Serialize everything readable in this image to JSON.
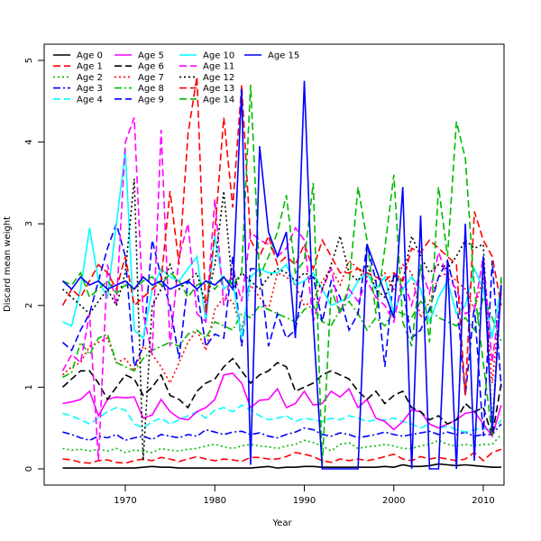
{
  "chart_data": {
    "type": "line",
    "title": "",
    "xlabel": "Year",
    "ylabel": "Discard mean weight",
    "xlim": [
      1963,
      2012
    ],
    "ylim": [
      0,
      5
    ],
    "xticks": [
      1970,
      1980,
      1990,
      2000,
      2010
    ],
    "yticks": [
      0,
      1,
      2,
      3,
      4,
      5
    ],
    "grid": false,
    "legend_position": "top-left",
    "x": [
      1963,
      1964,
      1965,
      1966,
      1967,
      1968,
      1969,
      1970,
      1971,
      1972,
      1973,
      1974,
      1975,
      1976,
      1977,
      1978,
      1979,
      1980,
      1981,
      1982,
      1983,
      1984,
      1985,
      1986,
      1987,
      1988,
      1989,
      1990,
      1991,
      1992,
      1993,
      1994,
      1995,
      1996,
      1997,
      1998,
      1999,
      2000,
      2001,
      2002,
      2003,
      2004,
      2005,
      2006,
      2007,
      2008,
      2009,
      2010,
      2011,
      2012
    ],
    "series": [
      {
        "name": "Age 0",
        "color": "#000000",
        "dash": "solid",
        "values": [
          0.01,
          0.01,
          0.01,
          0.01,
          0.01,
          0.01,
          0.01,
          0.01,
          0.01,
          0.02,
          0.03,
          0.02,
          0.02,
          0.01,
          0.01,
          0.01,
          0.01,
          0.01,
          0.01,
          0.01,
          0.01,
          0.01,
          0.02,
          0.03,
          0.01,
          0.02,
          0.02,
          0.03,
          0.03,
          0.02,
          0.02,
          0.02,
          0.02,
          0.02,
          0.02,
          0.02,
          0.03,
          0.02,
          0.05,
          0.03,
          0.03,
          0.04,
          0.06,
          0.05,
          0.04,
          0.05,
          0.04,
          0.03,
          0.02,
          0.02
        ]
      },
      {
        "name": "Age 1",
        "color": "#ff0000",
        "dash": "dashed",
        "values": [
          0.12,
          0.11,
          0.08,
          0.07,
          0.1,
          0.11,
          0.08,
          0.07,
          0.1,
          0.12,
          0.1,
          0.14,
          0.12,
          0.09,
          0.12,
          0.15,
          0.12,
          0.1,
          0.12,
          0.11,
          0.09,
          0.14,
          0.14,
          0.12,
          0.12,
          0.15,
          0.2,
          0.18,
          0.15,
          0.1,
          0.08,
          0.12,
          0.1,
          0.12,
          0.1,
          0.12,
          0.15,
          0.18,
          0.12,
          0.1,
          0.15,
          0.12,
          0.14,
          0.12,
          0.1,
          0.12,
          0.2,
          0.1,
          0.2,
          0.24
        ]
      },
      {
        "name": "Age 2",
        "color": "#00bb00",
        "dash": "dotted",
        "values": [
          0.25,
          0.23,
          0.24,
          0.22,
          0.24,
          0.22,
          0.25,
          0.2,
          0.23,
          0.22,
          0.2,
          0.25,
          0.23,
          0.22,
          0.24,
          0.25,
          0.28,
          0.3,
          0.27,
          0.25,
          0.28,
          0.3,
          0.28,
          0.27,
          0.25,
          0.28,
          0.3,
          0.35,
          0.32,
          0.28,
          0.22,
          0.3,
          0.32,
          0.25,
          0.27,
          0.28,
          0.3,
          0.28,
          0.25,
          0.25,
          0.28,
          0.3,
          0.35,
          0.3,
          0.28,
          0.3,
          0.28,
          0.3,
          0.3,
          0.42
        ]
      },
      {
        "name": "Age 3",
        "color": "#0000ff",
        "dash": "dashdot",
        "values": [
          0.45,
          0.42,
          0.38,
          0.35,
          0.4,
          0.38,
          0.42,
          0.35,
          0.38,
          0.4,
          0.36,
          0.42,
          0.4,
          0.38,
          0.42,
          0.4,
          0.48,
          0.45,
          0.42,
          0.45,
          0.46,
          0.42,
          0.44,
          0.4,
          0.38,
          0.42,
          0.45,
          0.5,
          0.48,
          0.42,
          0.4,
          0.44,
          0.42,
          0.38,
          0.4,
          0.42,
          0.45,
          0.42,
          0.4,
          0.42,
          0.44,
          0.46,
          0.42,
          0.45,
          0.42,
          0.45,
          0.4,
          0.42,
          0.42,
          0.55
        ]
      },
      {
        "name": "Age 4",
        "color": "#00ffff",
        "dash": "dashed",
        "values": [
          0.68,
          0.65,
          0.6,
          0.55,
          0.62,
          0.7,
          0.75,
          0.72,
          0.55,
          0.5,
          0.58,
          0.62,
          0.55,
          0.6,
          0.65,
          0.7,
          0.62,
          0.72,
          0.75,
          0.7,
          0.78,
          0.72,
          0.65,
          0.6,
          0.62,
          0.65,
          0.58,
          0.62,
          0.6,
          0.58,
          0.62,
          0.6,
          0.65,
          0.62,
          0.58,
          0.6,
          0.6,
          0.62,
          0.58,
          0.55,
          0.5,
          0.55,
          0.5,
          0.52,
          0.48,
          0.45,
          0.48,
          0.5,
          0.45,
          0.6
        ]
      },
      {
        "name": "Age 5",
        "color": "#ff00ff",
        "dash": "solid",
        "values": [
          0.8,
          0.82,
          0.85,
          0.95,
          0.65,
          0.85,
          0.88,
          0.87,
          0.88,
          0.62,
          0.66,
          0.85,
          0.7,
          0.62,
          0.6,
          0.7,
          0.75,
          0.85,
          1.15,
          1.17,
          1.05,
          0.75,
          0.84,
          0.85,
          0.98,
          0.75,
          0.8,
          0.95,
          0.78,
          0.8,
          0.95,
          0.88,
          0.98,
          0.75,
          0.85,
          0.62,
          0.58,
          0.48,
          0.58,
          0.72,
          0.7,
          0.55,
          0.5,
          0.55,
          0.6,
          0.68,
          0.7,
          0.55,
          0.4,
          0.78
        ]
      },
      {
        "name": "Age 6",
        "color": "#000000",
        "dash": "dashed",
        "values": [
          1.0,
          1.1,
          1.2,
          1.2,
          1.05,
          0.85,
          1.0,
          1.15,
          1.1,
          0.9,
          1.0,
          1.15,
          0.9,
          0.85,
          0.75,
          0.95,
          1.05,
          1.1,
          1.25,
          1.35,
          1.2,
          1.05,
          1.15,
          1.2,
          1.3,
          1.25,
          0.95,
          1.0,
          1.05,
          1.15,
          1.2,
          1.15,
          1.1,
          0.95,
          0.85,
          0.95,
          0.8,
          0.9,
          0.95,
          0.75,
          0.7,
          0.6,
          0.65,
          0.55,
          0.6,
          0.8,
          0.7,
          0.75,
          0.4,
          1.05
        ]
      },
      {
        "name": "Age 7",
        "color": "#ff0000",
        "dash": "dotted",
        "values": [
          1.15,
          1.25,
          1.3,
          1.5,
          1.55,
          1.6,
          1.3,
          1.35,
          1.2,
          1.5,
          1.4,
          1.25,
          1.05,
          1.3,
          1.55,
          1.7,
          1.45,
          1.95,
          2.1,
          2.05,
          1.7,
          2.25,
          2.1,
          1.95,
          2.4,
          2.35,
          2.25,
          2.0,
          2.05,
          2.3,
          2.45,
          2.25,
          2.55,
          2.45,
          2.35,
          2.3,
          2.4,
          2.2,
          2.5,
          2.4,
          1.85,
          2.05,
          2.35,
          2.4,
          2.3,
          2.2,
          1.95,
          2.35,
          1.05,
          2.15
        ]
      },
      {
        "name": "Age 8",
        "color": "#00bb00",
        "dash": "dashdot",
        "values": [
          1.12,
          1.18,
          1.55,
          1.4,
          1.6,
          1.65,
          1.3,
          1.25,
          1.2,
          1.35,
          1.45,
          1.5,
          1.55,
          1.5,
          1.65,
          1.7,
          1.6,
          1.8,
          1.75,
          1.7,
          1.9,
          1.85,
          2.0,
          1.95,
          1.9,
          1.85,
          1.8,
          1.95,
          2.0,
          1.8,
          1.75,
          1.95,
          2.05,
          1.9,
          1.7,
          1.85,
          1.75,
          1.95,
          1.9,
          1.85,
          2.05,
          1.95,
          1.85,
          1.8,
          1.75,
          1.85,
          1.7,
          2.1,
          1.85,
          1.55
        ]
      },
      {
        "name": "Age 9",
        "color": "#0000ff",
        "dash": "dashed",
        "values": [
          1.55,
          1.45,
          1.7,
          1.9,
          2.3,
          2.7,
          3.0,
          2.6,
          1.25,
          1.5,
          2.8,
          2.35,
          2.0,
          1.35,
          2.3,
          2.2,
          1.5,
          1.65,
          1.6,
          2.6,
          1.5,
          2.45,
          2.45,
          1.5,
          1.9,
          1.6,
          1.7,
          2.3,
          2.35,
          1.8,
          2.3,
          2.1,
          1.7,
          1.9,
          2.75,
          2.3,
          1.25,
          2.4,
          2.2,
          1.6,
          1.7,
          1.95,
          2.35,
          2.55,
          2.1,
          0.9,
          2.0,
          0.4,
          2.55,
          1.0
        ]
      },
      {
        "name": "Age 10",
        "color": "#00ffff",
        "dash": "solid",
        "values": [
          1.8,
          1.75,
          2.2,
          2.95,
          2.3,
          2.1,
          3.0,
          3.9,
          1.7,
          1.6,
          2.2,
          2.45,
          2.35,
          2.3,
          2.45,
          2.6,
          1.8,
          2.85,
          2.2,
          2.3,
          1.6,
          2.35,
          2.45,
          2.4,
          2.4,
          2.5,
          2.25,
          2.3,
          2.4,
          2.2,
          2.0,
          2.05,
          2.1,
          2.3,
          2.4,
          2.2,
          2.35,
          1.9,
          2.2,
          2.35,
          2.2,
          1.8,
          2.1,
          2.3,
          1.9,
          2.0,
          2.45,
          2.2,
          1.6,
          2.25
        ]
      },
      {
        "name": "Age 11",
        "color": "#ff00ff",
        "dash": "dashed",
        "values": [
          1.2,
          1.4,
          1.3,
          1.9,
          0.1,
          2.5,
          2.0,
          4.0,
          4.3,
          1.9,
          1.4,
          4.15,
          1.5,
          2.6,
          3.0,
          1.9,
          1.8,
          3.3,
          2.0,
          2.45,
          2.05,
          2.9,
          2.8,
          2.75,
          2.6,
          2.7,
          2.95,
          2.8,
          1.8,
          2.2,
          2.45,
          1.9,
          2.2,
          2.05,
          2.3,
          2.1,
          2.0,
          1.8,
          2.35,
          2.0,
          2.45,
          2.15,
          2.65,
          2.35,
          2.2,
          1.9,
          1.95,
          2.6,
          1.3,
          2.2
        ]
      },
      {
        "name": "Age 12",
        "color": "#000000",
        "dash": "dotted",
        "values": [
          2.2,
          2.1,
          2.0,
          1.9,
          2.05,
          2.2,
          2.0,
          2.4,
          3.55,
          0.1,
          2.0,
          2.2,
          2.5,
          2.2,
          2.3,
          2.4,
          2.0,
          2.5,
          3.4,
          2.2,
          2.4,
          2.3,
          2.2,
          2.35,
          2.45,
          2.4,
          2.3,
          2.4,
          2.35,
          2.2,
          2.5,
          2.85,
          2.4,
          2.3,
          2.5,
          2.2,
          2.1,
          2.35,
          2.3,
          2.85,
          2.6,
          2.4,
          2.5,
          2.45,
          2.6,
          2.8,
          2.7,
          2.75,
          0.5,
          2.3
        ]
      },
      {
        "name": "Age 13",
        "color": "#ff0000",
        "dash": "dashed",
        "values": [
          2.0,
          2.2,
          2.1,
          2.3,
          2.5,
          2.4,
          2.2,
          2.6,
          2.0,
          2.1,
          2.2,
          2.3,
          3.4,
          2.5,
          4.1,
          4.8,
          1.9,
          2.9,
          4.3,
          3.2,
          4.7,
          2.8,
          2.6,
          2.85,
          2.5,
          2.6,
          2.5,
          2.75,
          2.45,
          2.8,
          2.6,
          2.4,
          2.4,
          2.45,
          2.4,
          2.35,
          2.3,
          2.4,
          2.3,
          2.7,
          2.65,
          2.8,
          2.7,
          2.6,
          2.5,
          0.9,
          3.15,
          2.8,
          2.6,
          2.0
        ]
      },
      {
        "name": "Age 14",
        "color": "#00bb00",
        "dash": "dashed",
        "values": [
          2.3,
          2.25,
          2.4,
          2.1,
          2.2,
          2.3,
          2.15,
          2.25,
          2.2,
          2.3,
          2.35,
          2.25,
          2.4,
          2.3,
          2.1,
          2.25,
          2.3,
          2.2,
          2.35,
          2.25,
          2.4,
          4.7,
          2.35,
          2.6,
          2.9,
          3.35,
          2.4,
          2.55,
          3.5,
          0.05,
          2.2,
          1.9,
          2.25,
          3.45,
          2.8,
          1.9,
          2.7,
          3.6,
          1.8,
          1.5,
          2.5,
          1.55,
          3.45,
          2.6,
          4.25,
          3.8,
          2.2,
          1.3,
          0.4,
          2.35
        ]
      },
      {
        "name": "Age 15",
        "color": "#0000ff",
        "dash": "solid",
        "values": [
          2.3,
          2.2,
          2.35,
          2.25,
          2.3,
          2.2,
          2.25,
          2.3,
          2.2,
          2.35,
          2.25,
          2.3,
          2.2,
          2.25,
          2.3,
          2.2,
          2.3,
          2.25,
          2.35,
          2.2,
          4.65,
          0.05,
          3.95,
          2.9,
          2.6,
          2.9,
          1.6,
          4.75,
          1.8,
          0.0,
          0.0,
          0.0,
          0.0,
          0.0,
          2.75,
          2.45,
          2.15,
          1.85,
          3.45,
          0.0,
          3.1,
          0.0,
          0.0,
          2.55,
          0.0,
          3.0,
          0.1,
          2.6,
          0.45,
          2.25
        ]
      }
    ]
  }
}
